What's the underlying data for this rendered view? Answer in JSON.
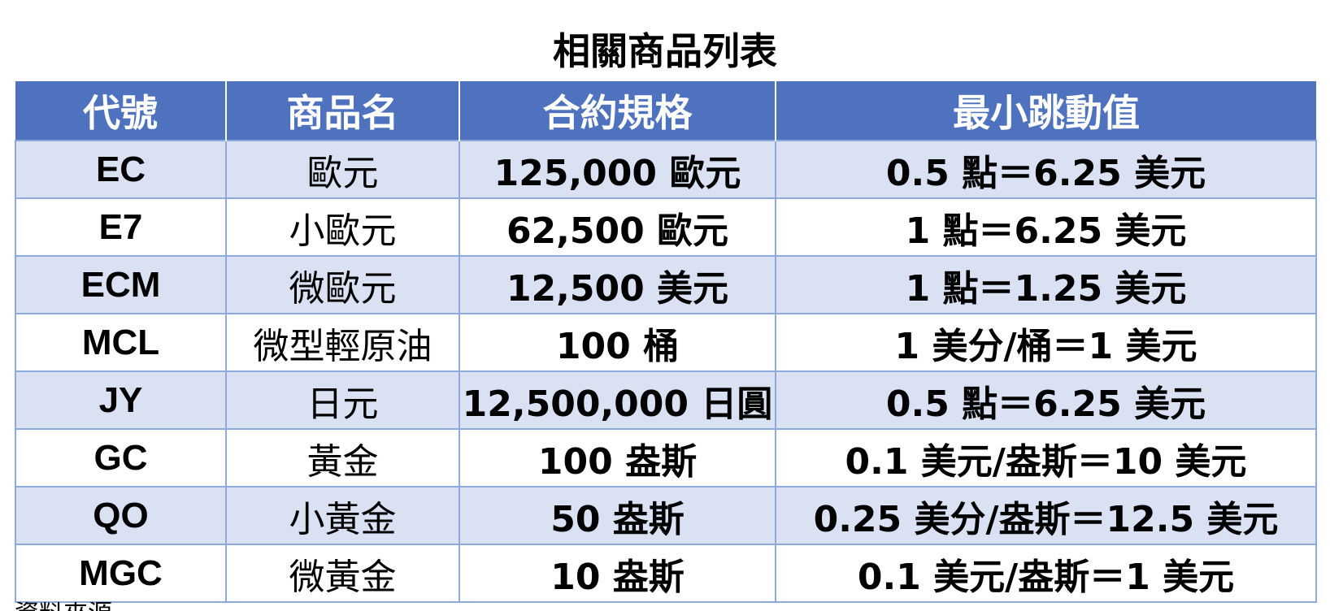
{
  "title": "相關商品列表",
  "colors": {
    "header_bg": "#4f72be",
    "header_text": "#ffffff",
    "row_alt_bg": "#d9e1f2",
    "row_bg": "#ffffff",
    "border": "#8eaadb"
  },
  "table": {
    "headers": [
      "代號",
      "商品名",
      "合約規格",
      "最小跳動值"
    ],
    "rows": [
      [
        "EC",
        "歐元",
        "125,000 歐元",
        "0.5 點＝6.25 美元"
      ],
      [
        "E7",
        "小歐元",
        "62,500 歐元",
        "1 點＝6.25 美元"
      ],
      [
        "ECM",
        "微歐元",
        "12,500 美元",
        "1 點＝1.25 美元"
      ],
      [
        "MCL",
        "微型輕原油",
        "100 桶",
        "1 美分/桶＝1 美元"
      ],
      [
        "JY",
        "日元",
        "12,500,000 日圓",
        "0.5 點＝6.25 美元"
      ],
      [
        "GC",
        "黃金",
        "100 盎斯",
        "0.1 美元/盎斯＝10 美元"
      ],
      [
        "QO",
        "小黃金",
        "50 盎斯",
        "0.25 美分/盎斯＝12.5 美元"
      ],
      [
        "MGC",
        "微黃金",
        "10 盎斯",
        "0.1 美元/盎斯＝1 美元"
      ]
    ]
  },
  "footnote": "資料來源"
}
